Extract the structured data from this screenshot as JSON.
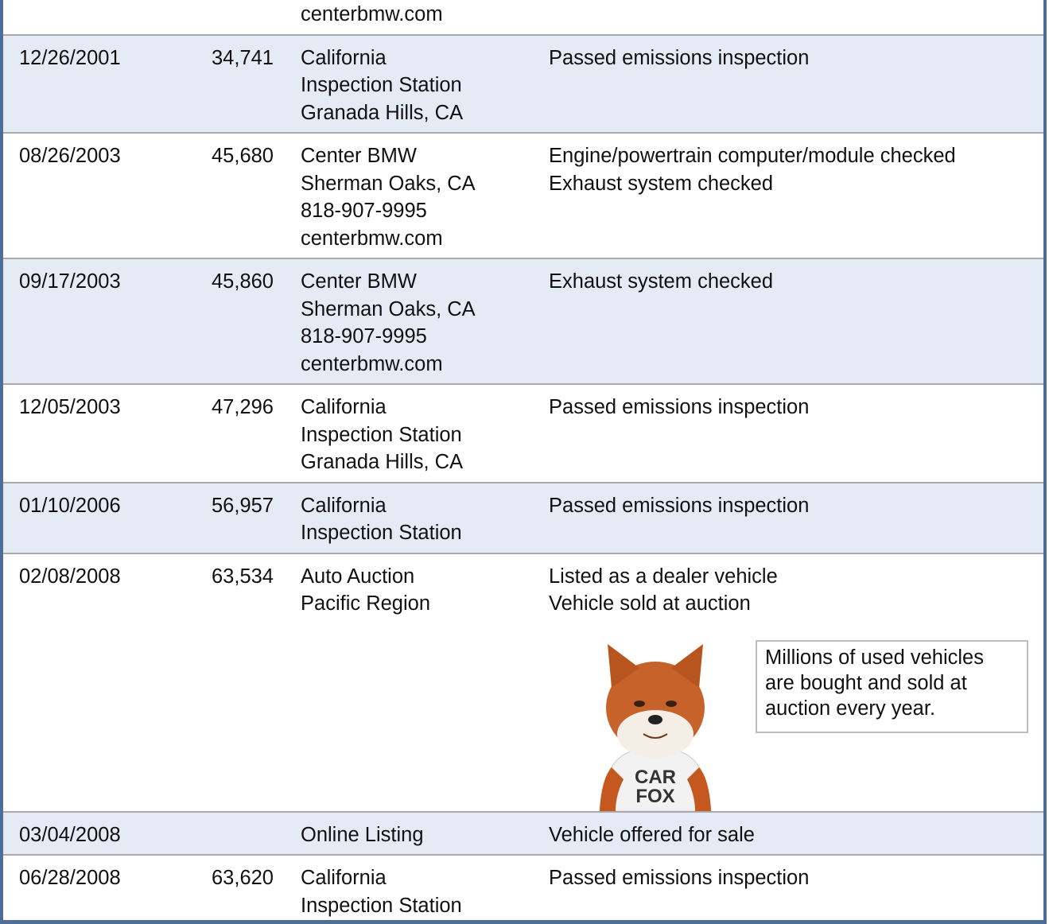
{
  "history": {
    "rows": [
      {
        "source": [
          "centerbmw.com"
        ]
      },
      {
        "date": "12/26/2001",
        "odometer": "34,741",
        "source": [
          "California",
          "Inspection Station",
          "Granada Hills, CA"
        ],
        "comments": [
          "Passed emissions inspection"
        ]
      },
      {
        "date": "08/26/2003",
        "odometer": "45,680",
        "source": [
          "Center BMW",
          "Sherman Oaks, CA",
          "818-907-9995",
          "centerbmw.com"
        ],
        "comments": [
          "Engine/powertrain computer/module checked",
          "Exhaust system checked"
        ]
      },
      {
        "date": "09/17/2003",
        "odometer": "45,860",
        "source": [
          "Center BMW",
          "Sherman Oaks, CA",
          "818-907-9995",
          "centerbmw.com"
        ],
        "comments": [
          "Exhaust system checked"
        ]
      },
      {
        "date": "12/05/2003",
        "odometer": "47,296",
        "source": [
          "California",
          "Inspection Station",
          "Granada Hills, CA"
        ],
        "comments": [
          "Passed emissions inspection"
        ]
      },
      {
        "date": "01/10/2006",
        "odometer": "56,957",
        "source": [
          "California",
          "Inspection Station"
        ],
        "comments": [
          "Passed emissions inspection"
        ]
      },
      {
        "date": "02/08/2008",
        "odometer": "63,534",
        "source": [
          "Auto Auction",
          "Pacific Region"
        ],
        "comments": [
          "Listed as a dealer vehicle",
          "Vehicle sold at auction"
        ],
        "mascot_shirt": [
          "CAR",
          "FOX"
        ],
        "callout": [
          "Millions of used vehicles",
          "are bought and sold at",
          "auction every year."
        ]
      },
      {
        "date": "03/04/2008",
        "source": [
          "Online Listing"
        ],
        "comments": [
          "Vehicle offered for sale"
        ]
      },
      {
        "date": "06/28/2008",
        "odometer": "63,620",
        "source": [
          "California",
          "Inspection Station"
        ],
        "comments": [
          "Passed emissions inspection"
        ]
      }
    ]
  }
}
